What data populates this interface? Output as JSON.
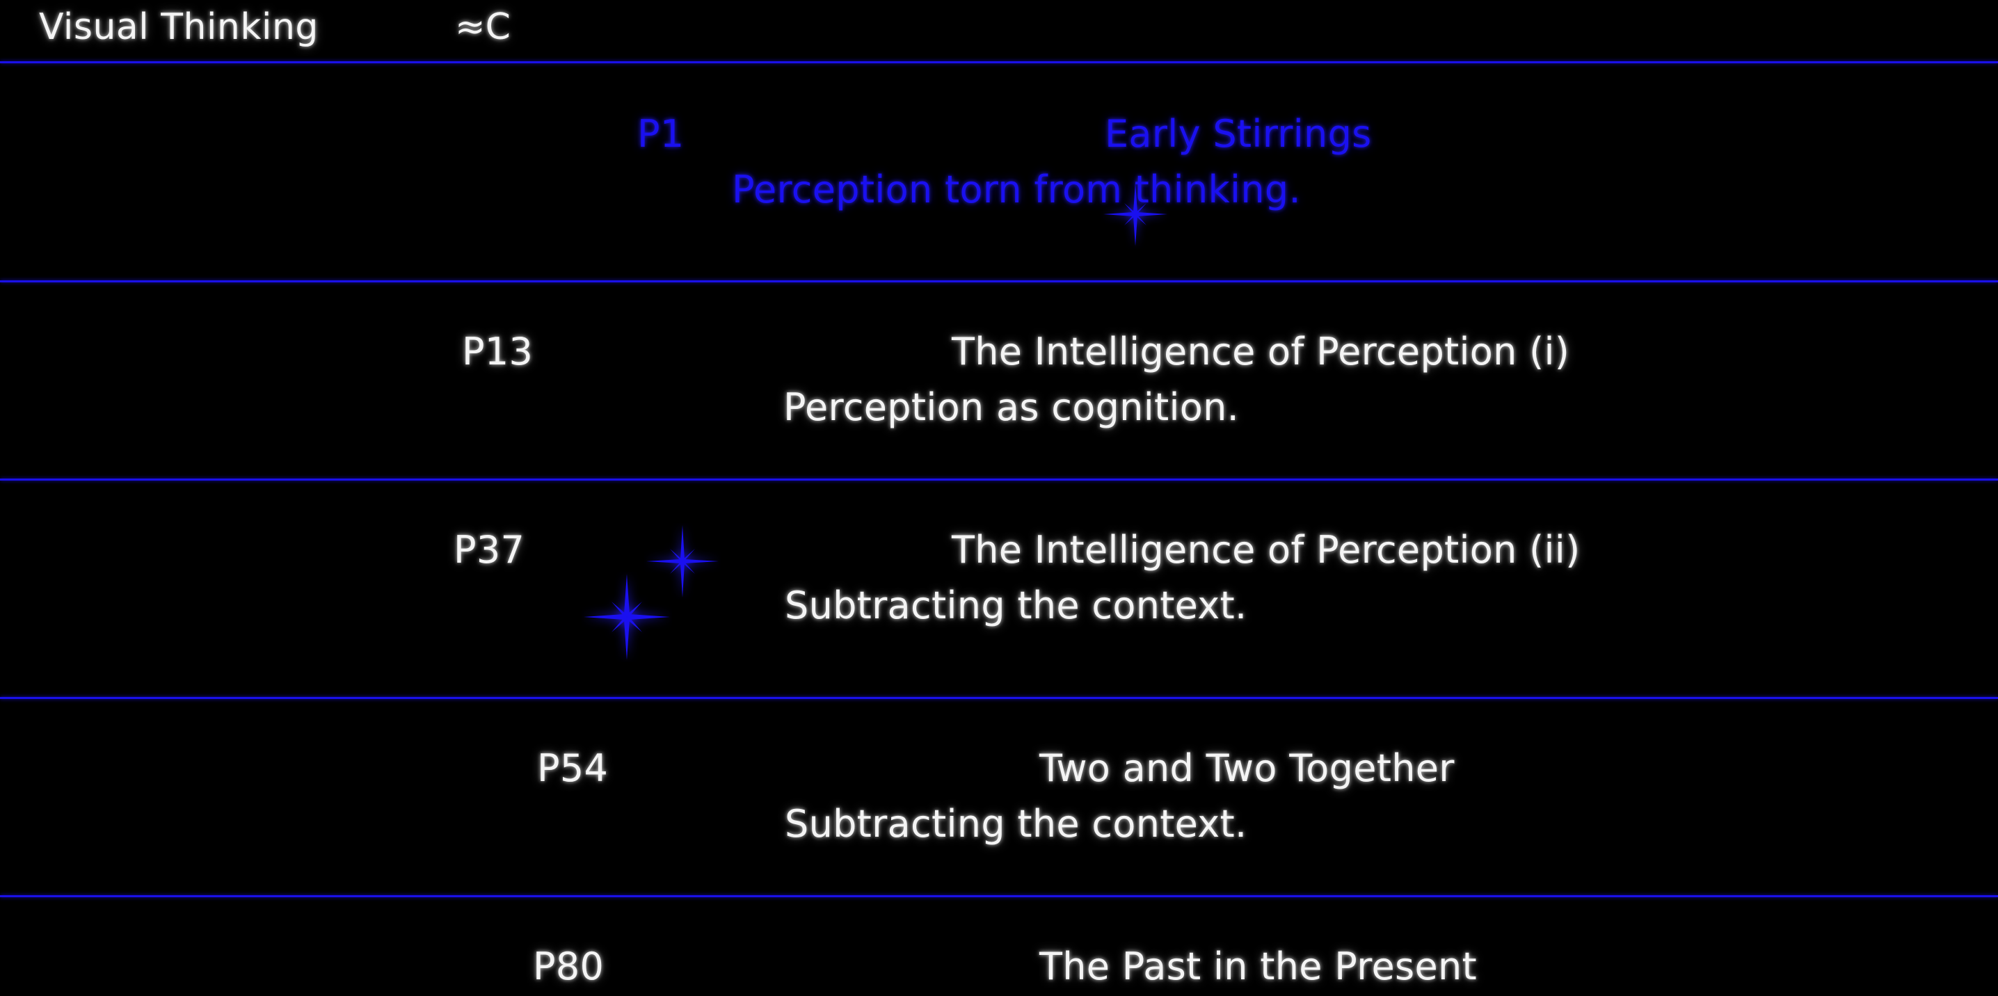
{
  "header": {
    "title": "Visual Thinking",
    "symbol": "≈C"
  },
  "chapters": [
    {
      "page": "P1",
      "title": "Early Stirrings",
      "subtitle": "Perception torn from thinking.",
      "state": "active"
    },
    {
      "page": "P13",
      "title": "The Intelligence of Perception (i)",
      "subtitle": "Perception as cognition."
    },
    {
      "page": "P37",
      "title": "The Intelligence of Perception (ii)",
      "subtitle": "Subtracting the context."
    },
    {
      "page": "P54",
      "title": "Two and Two Together",
      "subtitle": "Subtracting the context."
    },
    {
      "page": "P80",
      "title": "The Past in the Present",
      "subtitle": ""
    }
  ],
  "colors": {
    "background": "#000000",
    "accent": "#1a10f0",
    "text": "#f4f4f4"
  },
  "icons": [
    "sparkle-icon"
  ]
}
